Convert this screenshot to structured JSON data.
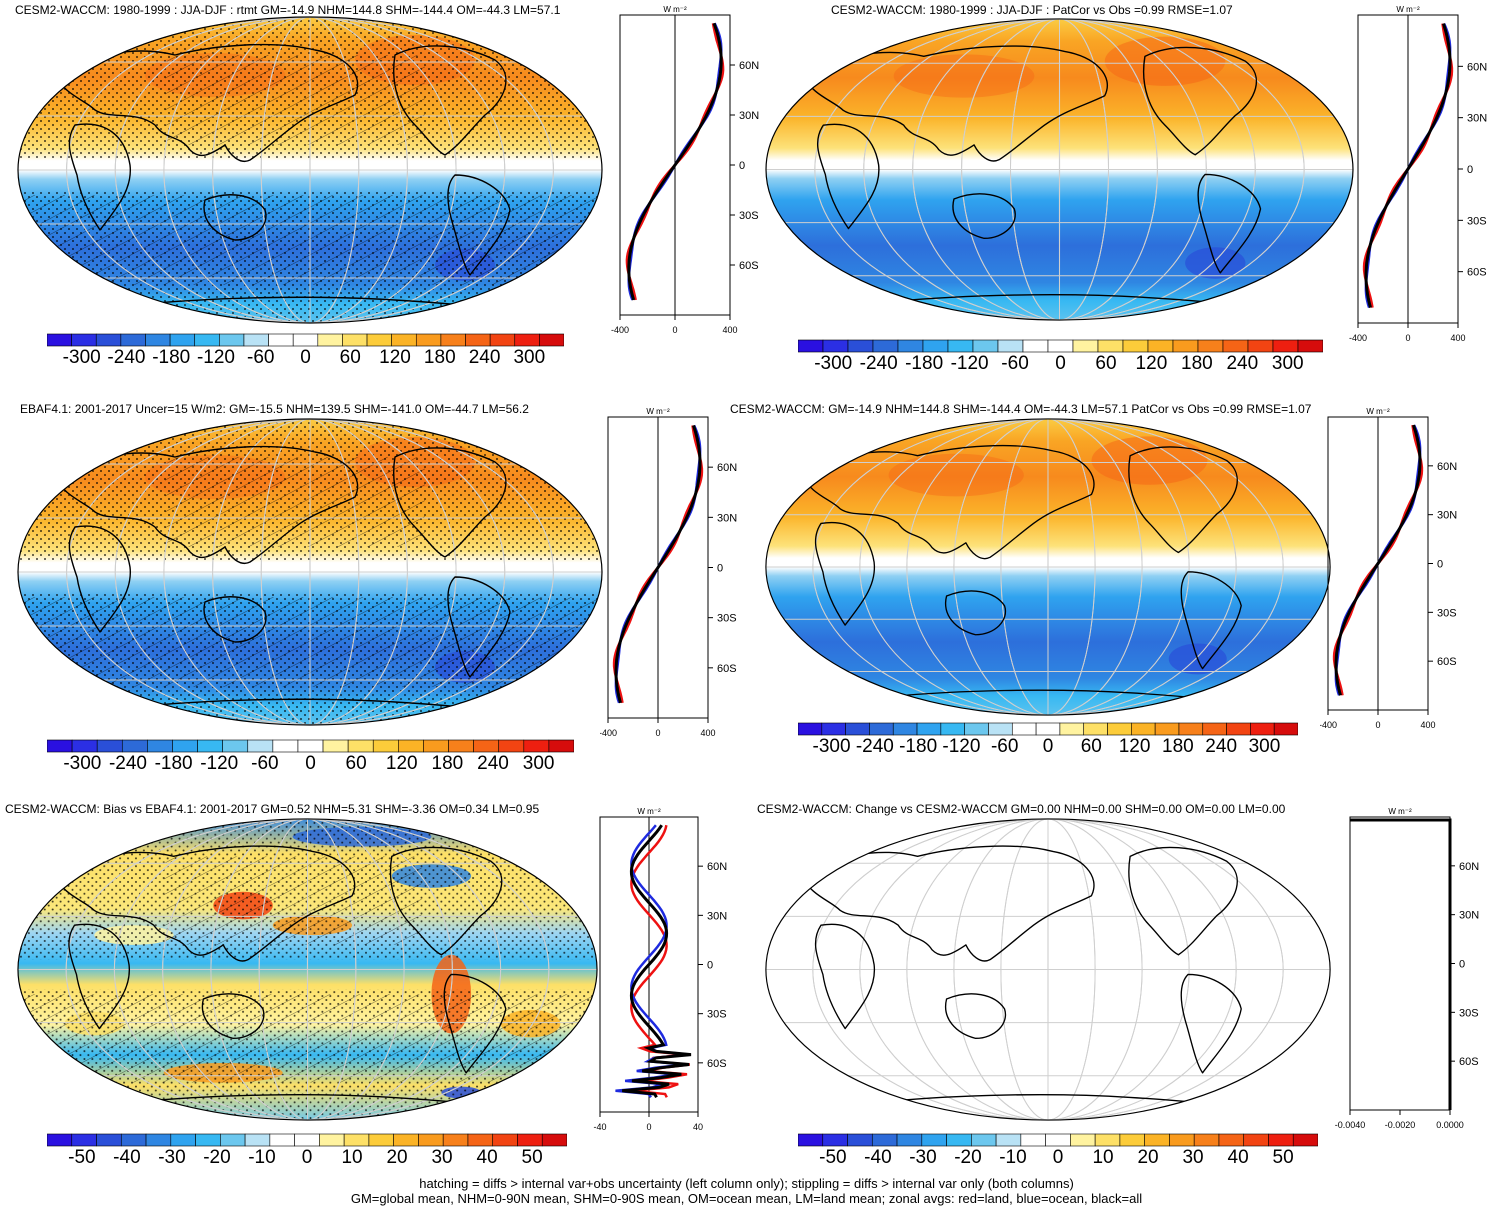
{
  "panels": [
    {
      "id": "p1",
      "title": "CESM2-WACCM: 1980-1999 : JJA-DJF : rtmt GM=-14.9 NHM=144.8 SHM=-144.4 OM=-44.3 LM=57.1",
      "type": "summer",
      "hatch": true,
      "stipple": true,
      "xticks": [
        "-400",
        "0",
        "400"
      ],
      "xunit": "W m⁻²",
      "cbar": "main"
    },
    {
      "id": "p2",
      "title": "CESM2-WACCM: 1980-1999 : JJA-DJF : PatCor vs Obs =0.99 RMSE=1.07",
      "type": "summer",
      "hatch": false,
      "stipple": false,
      "xticks": [
        "-400",
        "0",
        "400"
      ],
      "xunit": "W m⁻²",
      "cbar": "main"
    },
    {
      "id": "p3",
      "title": "EBAF4.1: 2001-2017 Uncer=15 W/m2: GM=-15.5 NHM=139.5 SHM=-141.0 OM=-44.7 LM=56.2",
      "type": "summer",
      "hatch": true,
      "stipple": true,
      "xticks": [
        "-400",
        "0",
        "400"
      ],
      "xunit": "W m⁻²",
      "cbar": "main"
    },
    {
      "id": "p4",
      "title": "CESM2-WACCM: GM=-14.9 NHM=144.8 SHM=-144.4 OM=-44.3 LM=57.1 PatCor vs Obs =0.99 RMSE=1.07",
      "type": "summer",
      "hatch": false,
      "stipple": false,
      "xticks": [
        "-400",
        "0",
        "400"
      ],
      "xunit": "W m⁻²",
      "cbar": "main"
    },
    {
      "id": "p5",
      "title": "CESM2-WACCM: Bias vs EBAF4.1: 2001-2017 GM=0.52 NHM=5.31 SHM=-3.36 OM=0.34 LM=0.95",
      "type": "bias",
      "hatch": true,
      "stipple": true,
      "xticks": [
        "-40",
        "0",
        "40"
      ],
      "xunit": "W m⁻²",
      "cbar": "bias"
    },
    {
      "id": "p6",
      "title": "CESM2-WACCM: Change vs CESM2-WACCM GM=0.00 NHM=0.00 SHM=0.00 OM=0.00 LM=0.00",
      "type": "blank",
      "hatch": false,
      "stipple": false,
      "xticks": [
        "-0.0040",
        "-0.0020",
        "0.0000"
      ],
      "xunit": "W m⁻²",
      "cbar": "bias"
    }
  ],
  "lat_ticks": [
    "60N",
    "30N",
    "0",
    "30S",
    "60S"
  ],
  "colorbars": {
    "main": {
      "labels": [
        "-300",
        "-240",
        "-180",
        "-120",
        "-60",
        "0",
        "60",
        "120",
        "180",
        "240",
        "300"
      ]
    },
    "bias": {
      "labels": [
        "-50",
        "-40",
        "-30",
        "-20",
        "-10",
        "0",
        "10",
        "20",
        "30",
        "40",
        "50"
      ]
    }
  },
  "palette": [
    "#2a10e0",
    "#2b2fe4",
    "#2a4fd8",
    "#2d6ad8",
    "#2f86e2",
    "#2fa3ef",
    "#37b8f2",
    "#6cc7ee",
    "#b9e2f5",
    "#ffffff",
    "#ffffff",
    "#fff3a0",
    "#fde067",
    "#fccc3a",
    "#fbb326",
    "#f99b1e",
    "#f7801b",
    "#f56416",
    "#f24412",
    "#ee1f10",
    "#d60c0c"
  ],
  "zonal_colors": {
    "land": "#ee1111",
    "ocean": "#1e2adf",
    "all": "#000000"
  },
  "footer": {
    "line1": "hatching = diffs > internal var+obs uncertainty (left column only); stippling = diffs > internal var only (both columns)",
    "line2": "GM=global mean, NHM=0-90N mean, SHM=0-90S mean, OM=ocean mean, LM=land mean; zonal avgs: red=land, blue=ocean, black=all"
  }
}
